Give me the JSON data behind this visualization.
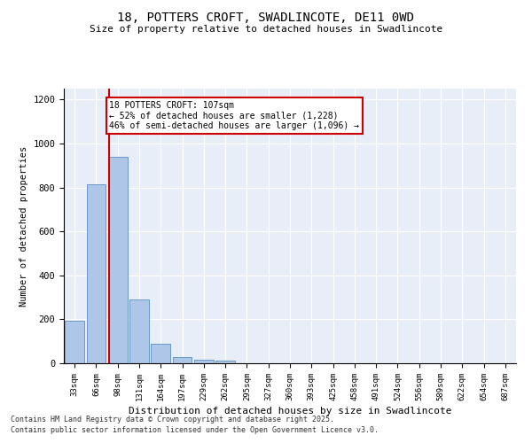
{
  "title1": "18, POTTERS CROFT, SWADLINCOTE, DE11 0WD",
  "title2": "Size of property relative to detached houses in Swadlincote",
  "xlabel": "Distribution of detached houses by size in Swadlincote",
  "ylabel": "Number of detached properties",
  "categories": [
    "33sqm",
    "66sqm",
    "98sqm",
    "131sqm",
    "164sqm",
    "197sqm",
    "229sqm",
    "262sqm",
    "295sqm",
    "327sqm",
    "360sqm",
    "393sqm",
    "425sqm",
    "458sqm",
    "491sqm",
    "524sqm",
    "556sqm",
    "589sqm",
    "622sqm",
    "654sqm",
    "687sqm"
  ],
  "values": [
    193,
    815,
    940,
    290,
    88,
    28,
    18,
    13,
    0,
    0,
    0,
    0,
    0,
    0,
    0,
    0,
    0,
    0,
    0,
    0,
    0
  ],
  "bar_color": "#aec6e8",
  "bar_edge_color": "#5a8fc2",
  "vline_color": "#cc0000",
  "annotation_line1": "18 POTTERS CROFT: 107sqm",
  "annotation_line2": "← 52% of detached houses are smaller (1,228)",
  "annotation_line3": "46% of semi-detached houses are larger (1,096) →",
  "annotation_box_color": "#ffffff",
  "annotation_box_edge_color": "#cc0000",
  "ylim": [
    0,
    1250
  ],
  "yticks": [
    0,
    200,
    400,
    600,
    800,
    1000,
    1200
  ],
  "background_color": "#e8eef7",
  "footer1": "Contains HM Land Registry data © Crown copyright and database right 2025.",
  "footer2": "Contains public sector information licensed under the Open Government Licence v3.0."
}
